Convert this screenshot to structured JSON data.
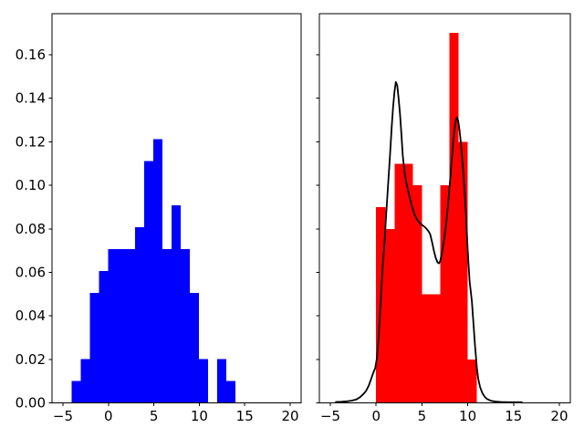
{
  "figure": {
    "background": "#ffffff",
    "text_color": "#000000"
  },
  "chart_data": [
    {
      "type": "bar",
      "subtype": "histogram",
      "panel": "left",
      "title": "",
      "xlabel": "",
      "ylabel": "",
      "bar_color": "#0000ff",
      "bin_start": -4.05,
      "bin_width": 1.0,
      "bin_heights": [
        0.0101,
        0.0202,
        0.0505,
        0.0606,
        0.0707,
        0.0707,
        0.0707,
        0.0808,
        0.1111,
        0.1212,
        0.0707,
        0.0909,
        0.0707,
        0.0505,
        0.0202,
        0.0,
        0.0202,
        0.0101
      ],
      "xlim": [
        -6.2,
        21.2
      ],
      "ylim": [
        0,
        0.1789
      ],
      "xticks": [
        -5,
        0,
        5,
        10,
        15,
        20
      ],
      "xtick_labels": [
        "−5",
        "0",
        "5",
        "10",
        "15",
        "20"
      ],
      "yticks": [
        0.0,
        0.02,
        0.04,
        0.06,
        0.08,
        0.1,
        0.12,
        0.14,
        0.16
      ],
      "ytick_labels": [
        "0.00",
        "0.02",
        "0.04",
        "0.06",
        "0.08",
        "0.10",
        "0.12",
        "0.14",
        "0.16"
      ],
      "show_ytick_labels": true,
      "grid": false,
      "legend": null
    },
    {
      "type": "bar",
      "subtype": "histogram+kde",
      "panel": "right",
      "title": "",
      "xlabel": "",
      "ylabel": "",
      "bar_color": "#ff0000",
      "bin_start": 0.0,
      "bin_width": 1.0,
      "bin_heights": [
        0.09,
        0.08,
        0.11,
        0.11,
        0.1,
        0.05,
        0.05,
        0.1,
        0.17,
        0.12,
        0.02
      ],
      "xlim": [
        -6.2,
        21.2
      ],
      "ylim": [
        0,
        0.1789
      ],
      "xticks": [
        -5,
        0,
        5,
        10,
        15,
        20
      ],
      "xtick_labels": [
        "−5",
        "0",
        "5",
        "10",
        "15",
        "20"
      ],
      "yticks": [
        0.0,
        0.02,
        0.04,
        0.06,
        0.08,
        0.1,
        0.12,
        0.14,
        0.16
      ],
      "ytick_labels": [
        "0.00",
        "0.02",
        "0.04",
        "0.06",
        "0.08",
        "0.10",
        "0.12",
        "0.14",
        "0.16"
      ],
      "show_ytick_labels": false,
      "grid": false,
      "legend": null,
      "kde": {
        "color": "#000000",
        "line_width": 1.8,
        "points": [
          [
            -4.4,
            0.0004
          ],
          [
            -3.8,
            0.0005
          ],
          [
            -3.2,
            0.0007
          ],
          [
            -2.7,
            0.001
          ],
          [
            -2.2,
            0.0015
          ],
          [
            -1.8,
            0.0025
          ],
          [
            -1.4,
            0.004
          ],
          [
            -1.1,
            0.0055
          ],
          [
            -0.8,
            0.008
          ],
          [
            -0.55,
            0.011
          ],
          [
            -0.3,
            0.014
          ],
          [
            -0.1,
            0.016
          ],
          [
            0.1,
            0.021
          ],
          [
            0.3,
            0.032
          ],
          [
            0.5,
            0.047
          ],
          [
            0.7,
            0.062
          ],
          [
            0.9,
            0.073
          ],
          [
            1.1,
            0.087
          ],
          [
            1.3,
            0.1
          ],
          [
            1.5,
            0.113
          ],
          [
            1.7,
            0.127
          ],
          [
            1.85,
            0.136
          ],
          [
            2.0,
            0.143
          ],
          [
            2.15,
            0.1475
          ],
          [
            2.3,
            0.146
          ],
          [
            2.45,
            0.14
          ],
          [
            2.6,
            0.133
          ],
          [
            2.75,
            0.124
          ],
          [
            2.9,
            0.114
          ],
          [
            3.1,
            0.106
          ],
          [
            3.3,
            0.101
          ],
          [
            3.6,
            0.0955
          ],
          [
            3.9,
            0.0905
          ],
          [
            4.2,
            0.0865
          ],
          [
            4.5,
            0.084
          ],
          [
            4.8,
            0.0825
          ],
          [
            5.1,
            0.0815
          ],
          [
            5.4,
            0.0805
          ],
          [
            5.7,
            0.079
          ],
          [
            5.9,
            0.0775
          ],
          [
            6.1,
            0.074
          ],
          [
            6.3,
            0.07
          ],
          [
            6.5,
            0.0667
          ],
          [
            6.7,
            0.0646
          ],
          [
            6.85,
            0.0641
          ],
          [
            7.0,
            0.0652
          ],
          [
            7.2,
            0.0695
          ],
          [
            7.4,
            0.0745
          ],
          [
            7.6,
            0.0805
          ],
          [
            7.8,
            0.089
          ],
          [
            8.0,
            0.0985
          ],
          [
            8.2,
            0.109
          ],
          [
            8.4,
            0.119
          ],
          [
            8.55,
            0.1258
          ],
          [
            8.7,
            0.13
          ],
          [
            8.82,
            0.1312
          ],
          [
            8.95,
            0.1298
          ],
          [
            9.1,
            0.1255
          ],
          [
            9.25,
            0.1195
          ],
          [
            9.4,
            0.112
          ],
          [
            9.6,
            0.101
          ],
          [
            9.8,
            0.087
          ],
          [
            10.0,
            0.07
          ],
          [
            10.2,
            0.056
          ],
          [
            10.45,
            0.0468
          ],
          [
            10.6,
            0.038
          ],
          [
            10.8,
            0.026
          ],
          [
            11.0,
            0.016
          ],
          [
            11.15,
            0.011
          ],
          [
            11.35,
            0.0072
          ],
          [
            11.6,
            0.0045
          ],
          [
            11.85,
            0.0028
          ],
          [
            12.1,
            0.0018
          ],
          [
            12.5,
            0.001
          ],
          [
            13.0,
            0.0006
          ],
          [
            13.6,
            0.0004
          ],
          [
            14.4,
            0.0003
          ],
          [
            15.2,
            0.0003
          ],
          [
            15.9,
            0.0003
          ]
        ]
      }
    }
  ]
}
